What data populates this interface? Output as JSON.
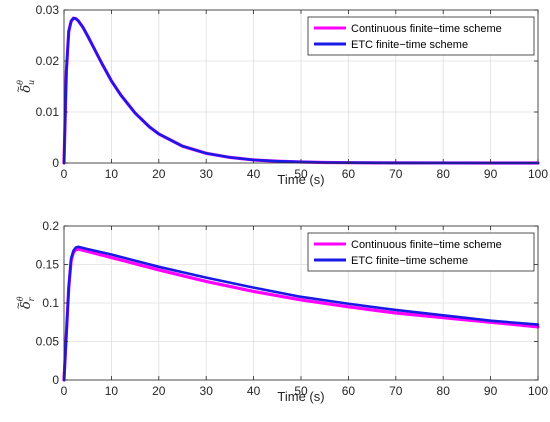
{
  "chart_data": [
    {
      "type": "line",
      "xlabel": "Time (s)",
      "ylabel": {
        "base": "δ",
        "sub": "u",
        "sup": "θ",
        "accent": "~"
      },
      "xlim": [
        0,
        100
      ],
      "ylim": [
        0,
        0.03
      ],
      "xticks": [
        0,
        10,
        20,
        30,
        40,
        50,
        60,
        70,
        80,
        90,
        100
      ],
      "yticks": [
        "0",
        "0.01",
        "0.02",
        "0.03"
      ],
      "ytick_values": [
        0,
        0.01,
        0.02,
        0.03
      ],
      "grid": true,
      "legend_position": "top-right",
      "series": [
        {
          "name": "Continuous finite−time scheme",
          "color": "#ff00ff",
          "x": [
            0,
            0.5,
            1,
            1.5,
            2,
            2.5,
            3,
            4,
            5,
            6,
            8,
            10,
            12,
            15,
            18,
            20,
            25,
            30,
            35,
            40,
            45,
            50,
            55,
            60,
            70,
            80,
            90,
            100
          ],
          "y": [
            0,
            0.018,
            0.0258,
            0.0278,
            0.0284,
            0.0283,
            0.0279,
            0.0266,
            0.0249,
            0.0231,
            0.0195,
            0.0161,
            0.0133,
            0.0098,
            0.0071,
            0.0057,
            0.0033,
            0.0019,
            0.0011,
            0.0006,
            0.00035,
            0.0002,
            0.0001,
            6e-05,
            2e-05,
            1e-05,
            0,
            0
          ]
        },
        {
          "name": "ETC finite−time scheme",
          "color": "#1a1ae6",
          "x": [
            0,
            0.5,
            1,
            1.5,
            2,
            2.5,
            3,
            4,
            5,
            6,
            8,
            10,
            12,
            15,
            18,
            20,
            25,
            30,
            35,
            40,
            45,
            50,
            55,
            60,
            70,
            80,
            90,
            100
          ],
          "y": [
            0,
            0.018,
            0.0258,
            0.0278,
            0.0284,
            0.0283,
            0.0279,
            0.0266,
            0.0249,
            0.0231,
            0.0195,
            0.0161,
            0.0133,
            0.0098,
            0.0071,
            0.0057,
            0.0033,
            0.0019,
            0.0011,
            0.0006,
            0.00035,
            0.0002,
            0.0001,
            6e-05,
            2e-05,
            1e-05,
            0,
            0
          ]
        }
      ]
    },
    {
      "type": "line",
      "xlabel": "Time (s)",
      "ylabel": {
        "base": "δ",
        "sub": "r",
        "sup": "θ",
        "accent": "~"
      },
      "xlim": [
        0,
        100
      ],
      "ylim": [
        0,
        0.2
      ],
      "xticks": [
        0,
        10,
        20,
        30,
        40,
        50,
        60,
        70,
        80,
        90,
        100
      ],
      "yticks": [
        "0",
        "0.05",
        "0.1",
        "0.15",
        "0.2"
      ],
      "ytick_values": [
        0,
        0.05,
        0.1,
        0.15,
        0.2
      ],
      "grid": true,
      "legend_position": "top-right",
      "series": [
        {
          "name": "Continuous finite−time scheme",
          "color": "#ff00ff",
          "x": [
            0,
            0.5,
            1,
            1.5,
            2,
            2.5,
            3,
            5,
            10,
            20,
            30,
            40,
            50,
            60,
            70,
            80,
            90,
            100
          ],
          "y": [
            0,
            0.06,
            0.12,
            0.155,
            0.166,
            0.169,
            0.17,
            0.167,
            0.159,
            0.143,
            0.128,
            0.115,
            0.104,
            0.095,
            0.087,
            0.081,
            0.075,
            0.069
          ]
        },
        {
          "name": "ETC finite−time scheme",
          "color": "#1a1ae6",
          "x": [
            0,
            0.5,
            1,
            1.5,
            2,
            2.5,
            3,
            5,
            10,
            20,
            30,
            40,
            50,
            60,
            70,
            80,
            90,
            100
          ],
          "y": [
            0,
            0.06,
            0.12,
            0.158,
            0.168,
            0.172,
            0.173,
            0.17,
            0.163,
            0.147,
            0.133,
            0.12,
            0.108,
            0.099,
            0.091,
            0.084,
            0.077,
            0.072
          ]
        }
      ]
    }
  ]
}
